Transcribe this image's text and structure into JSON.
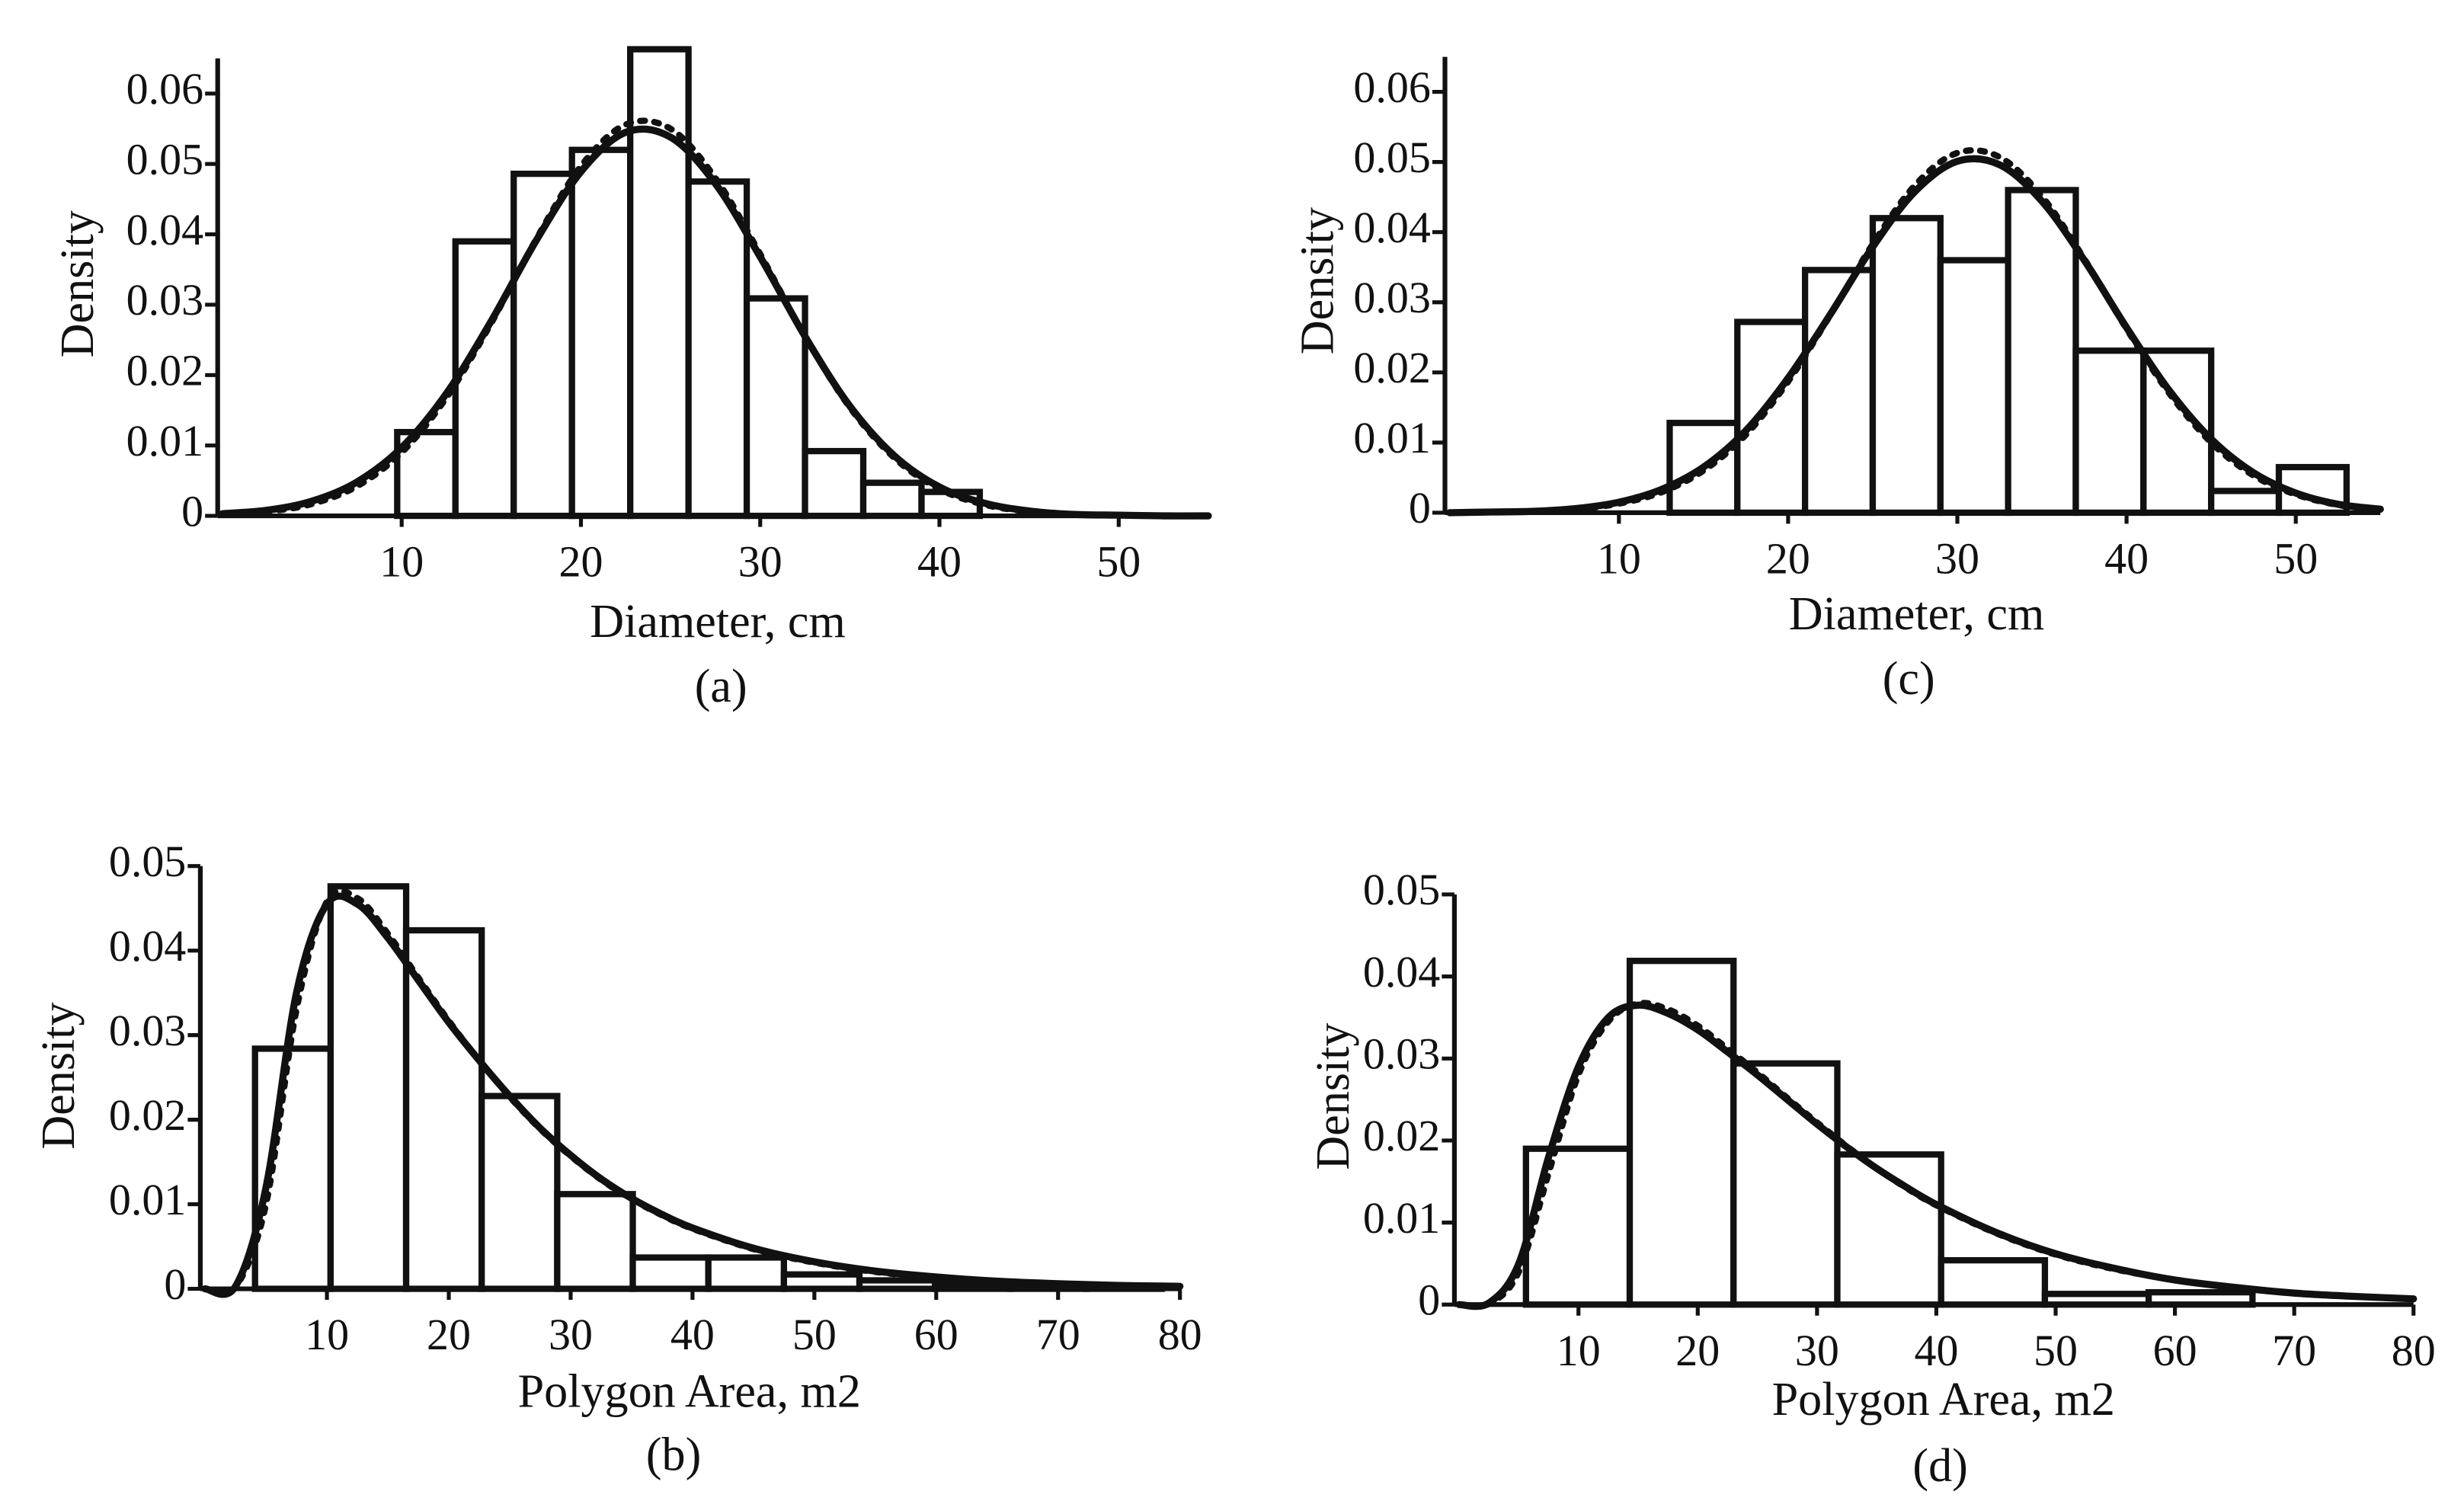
{
  "chart_data": [
    {
      "type": "histogram",
      "caption": "(a)",
      "xlabel": "Diameter, cm",
      "ylabel": "Density",
      "bins": [
        9.75,
        13,
        16.25,
        19.5,
        22.75,
        26,
        29.25,
        32.5,
        35.75,
        39,
        42.25
      ],
      "counts": [
        0.0119,
        0.039,
        0.0486,
        0.052,
        0.0663,
        0.0475,
        0.0309,
        0.0092,
        0.0047,
        0.0034
      ],
      "xlim": [
        0,
        55
      ],
      "ylim": [
        0,
        0.065
      ],
      "xticks": [
        10,
        20,
        30,
        40,
        50
      ],
      "yticks": [
        0,
        0.01,
        0.02,
        0.03,
        0.04,
        0.05,
        0.06
      ],
      "curves": [
        {
          "style": "solid",
          "x": [
            0,
            2.5,
            5,
            7.5,
            10,
            12.5,
            15,
            17.5,
            20,
            22.5,
            25,
            27.5,
            30,
            32.5,
            35,
            37.5,
            40,
            42.5,
            45,
            47.5,
            50,
            52.5,
            55
          ],
          "values": [
            0.0003,
            0.0008,
            0.0021,
            0.0048,
            0.0097,
            0.0174,
            0.0277,
            0.0391,
            0.0489,
            0.0545,
            0.0538,
            0.0472,
            0.0368,
            0.0255,
            0.0156,
            0.0085,
            0.0041,
            0.0018,
            0.0007,
            0.0002,
            0.0001,
            0,
            0
          ]
        },
        {
          "style": "dotted",
          "x": [
            0,
            2.5,
            5,
            7.5,
            10,
            12.5,
            15,
            17.5,
            20,
            22.5,
            25,
            27.5,
            30,
            32.5,
            35,
            37.5,
            40,
            42.5,
            45,
            47.5,
            50,
            52.5,
            55
          ],
          "values": [
            0.0002,
            0.0006,
            0.0017,
            0.0042,
            0.009,
            0.0168,
            0.0274,
            0.0393,
            0.0497,
            0.0556,
            0.055,
            0.048,
            0.0372,
            0.0255,
            0.0154,
            0.0082,
            0.0038,
            0.0016,
            0.0006,
            0.0002,
            0.0001,
            0,
            0
          ]
        }
      ]
    },
    {
      "type": "histogram",
      "caption": "(b)",
      "xlabel": "Polygon Area, m2",
      "ylabel": "Density",
      "bins": [
        4.1,
        10.3,
        16.5,
        22.7,
        28.9,
        35.1,
        41.3,
        47.5,
        53.7,
        59.9,
        66.1,
        72.3,
        78.5
      ],
      "counts": [
        0.0284,
        0.0476,
        0.0424,
        0.0228,
        0.0112,
        0.0037,
        0.0037,
        0.0017,
        0.001,
        0.0006,
        0.0003,
        0.0002
      ],
      "xlim": [
        0,
        80
      ],
      "ylim": [
        0,
        0.05
      ],
      "xticks": [
        10,
        20,
        30,
        40,
        50,
        60,
        70,
        80
      ],
      "yticks": [
        0,
        0.01,
        0.02,
        0.03,
        0.04,
        0.05
      ],
      "curves": [
        {
          "style": "solid",
          "x": [
            0,
            2.5,
            5,
            7.5,
            10,
            12.5,
            15,
            17.5,
            20,
            22.5,
            25,
            27.5,
            30,
            32.5,
            35,
            37.5,
            40,
            45,
            50,
            55,
            60,
            65,
            70,
            75,
            80
          ],
          "values": [
            0,
            0.0003,
            0.012,
            0.035,
            0.0455,
            0.0455,
            0.0415,
            0.0365,
            0.0315,
            0.027,
            0.0228,
            0.019,
            0.0158,
            0.013,
            0.0107,
            0.0088,
            0.0072,
            0.0048,
            0.0032,
            0.0021,
            0.0014,
            0.0009,
            0.0006,
            0.0004,
            0.0003
          ]
        },
        {
          "style": "dotted",
          "x": [
            0,
            2.5,
            5,
            7.5,
            10,
            12.5,
            15,
            17.5,
            20,
            22.5,
            25,
            27.5,
            30,
            32.5,
            35,
            37.5,
            40,
            45,
            50,
            55,
            60,
            65,
            70,
            75,
            80
          ],
          "values": [
            0,
            0.0002,
            0.01,
            0.033,
            0.0458,
            0.0462,
            0.042,
            0.0368,
            0.0317,
            0.027,
            0.0227,
            0.0189,
            0.0157,
            0.0129,
            0.0106,
            0.0087,
            0.0071,
            0.0047,
            0.0031,
            0.002,
            0.0013,
            0.0009,
            0.0006,
            0.0004,
            0.0003
          ]
        }
      ]
    },
    {
      "type": "histogram",
      "caption": "(c)",
      "xlabel": "Diameter, cm",
      "ylabel": "Density",
      "bins": [
        13,
        17,
        21,
        25,
        29,
        33,
        37,
        41,
        45,
        49,
        53
      ],
      "counts": [
        0.0128,
        0.0272,
        0.0346,
        0.042,
        0.036,
        0.046,
        0.0231,
        0.0231,
        0.0031,
        0.0065
      ],
      "xlim": [
        0,
        55
      ],
      "ylim": [
        0,
        0.065
      ],
      "xticks": [
        10,
        20,
        30,
        40,
        50
      ],
      "yticks": [
        0,
        0.01,
        0.02,
        0.03,
        0.04,
        0.05,
        0.06
      ],
      "curves": [
        {
          "style": "solid",
          "x": [
            0,
            2.5,
            5,
            7.5,
            10,
            12.5,
            15,
            17.5,
            20,
            22.5,
            25,
            27.5,
            30,
            32.5,
            35,
            37.5,
            40,
            42.5,
            45,
            47.5,
            50,
            52.5,
            55
          ],
          "values": [
            0,
            0.0001,
            0.0002,
            0.0006,
            0.0015,
            0.0033,
            0.0065,
            0.0117,
            0.0192,
            0.0283,
            0.0379,
            0.0458,
            0.0501,
            0.0496,
            0.0444,
            0.036,
            0.0264,
            0.0175,
            0.0105,
            0.0057,
            0.0028,
            0.0012,
            0.0005
          ]
        },
        {
          "style": "dotted",
          "x": [
            0,
            2.5,
            5,
            7.5,
            10,
            12.5,
            15,
            17.5,
            20,
            22.5,
            25,
            27.5,
            30,
            32.5,
            35,
            37.5,
            40,
            42.5,
            45,
            47.5,
            50,
            52.5,
            55
          ],
          "values": [
            0,
            0.0001,
            0.0002,
            0.0005,
            0.0013,
            0.0029,
            0.006,
            0.0111,
            0.0187,
            0.0282,
            0.0383,
            0.0467,
            0.0513,
            0.0507,
            0.0451,
            0.0362,
            0.0262,
            0.0171,
            0.01,
            0.0053,
            0.0026,
            0.0011,
            0.0004
          ]
        }
      ]
    },
    {
      "type": "histogram",
      "caption": "(d)",
      "xlabel": "Polygon Area, m2",
      "ylabel": "Density",
      "bins": [
        5.6,
        14.3,
        23,
        31.7,
        40.4,
        49.1,
        57.8,
        66.5
      ],
      "counts": [
        0.019,
        0.0419,
        0.0294,
        0.0183,
        0.0054,
        0.0013,
        0.0015
      ],
      "xlim": [
        0,
        80
      ],
      "ylim": [
        0,
        0.05
      ],
      "xticks": [
        10,
        20,
        30,
        40,
        50,
        60,
        70,
        80
      ],
      "yticks": [
        0,
        0.01,
        0.02,
        0.03,
        0.04,
        0.05
      ],
      "curves": [
        {
          "style": "solid",
          "x": [
            0,
            2.5,
            5,
            7.5,
            10,
            12.5,
            15,
            17.5,
            20,
            22.5,
            25,
            27.5,
            30,
            32.5,
            35,
            37.5,
            40,
            45,
            50,
            55,
            60,
            65,
            70,
            75,
            80
          ],
          "values": [
            0,
            0.0002,
            0.005,
            0.018,
            0.029,
            0.035,
            0.0365,
            0.0355,
            0.0335,
            0.0308,
            0.028,
            0.025,
            0.022,
            0.0192,
            0.0166,
            0.0143,
            0.0122,
            0.0088,
            0.0062,
            0.0044,
            0.003,
            0.0021,
            0.0014,
            0.001,
            0.0007
          ]
        },
        {
          "style": "dotted",
          "x": [
            0,
            2.5,
            5,
            7.5,
            10,
            12.5,
            15,
            17.5,
            20,
            22.5,
            25,
            27.5,
            30,
            32.5,
            35,
            37.5,
            40,
            45,
            50,
            55,
            60,
            65,
            70,
            75,
            80
          ],
          "values": [
            0,
            0.0001,
            0.004,
            0.016,
            0.028,
            0.0345,
            0.0367,
            0.036,
            0.034,
            0.0312,
            0.0283,
            0.0252,
            0.0222,
            0.0193,
            0.0166,
            0.0142,
            0.0121,
            0.0087,
            0.0061,
            0.0043,
            0.003,
            0.0021,
            0.0014,
            0.001,
            0.0007
          ]
        }
      ]
    }
  ]
}
